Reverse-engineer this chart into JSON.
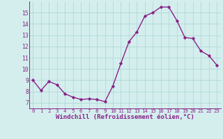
{
  "x": [
    0,
    1,
    2,
    3,
    4,
    5,
    6,
    7,
    8,
    9,
    10,
    11,
    12,
    13,
    14,
    15,
    16,
    17,
    18,
    19,
    20,
    21,
    22,
    23
  ],
  "y": [
    9.0,
    8.1,
    8.9,
    8.6,
    7.8,
    7.5,
    7.3,
    7.35,
    7.3,
    7.1,
    8.5,
    10.5,
    12.4,
    13.3,
    14.7,
    15.0,
    15.5,
    15.5,
    14.3,
    12.8,
    12.7,
    11.6,
    11.2,
    10.35
  ],
  "line_color": "#882288",
  "marker": "D",
  "markersize": 2.2,
  "linewidth": 1.0,
  "bg_color": "#d4eeee",
  "grid_color": "#b0d8d8",
  "xlabel": "Windchill (Refroidissement éolien,°C)",
  "xlabel_fontsize": 6.5,
  "xtick_fontsize": 5.2,
  "ytick_fontsize": 5.8,
  "ylim": [
    6.5,
    16.0
  ],
  "xlim": [
    -0.5,
    23.5
  ],
  "xticks": [
    0,
    1,
    2,
    3,
    4,
    5,
    6,
    7,
    8,
    9,
    10,
    11,
    12,
    13,
    14,
    15,
    16,
    17,
    18,
    19,
    20,
    21,
    22,
    23
  ],
  "yticks": [
    7,
    8,
    9,
    10,
    11,
    12,
    13,
    14,
    15
  ]
}
